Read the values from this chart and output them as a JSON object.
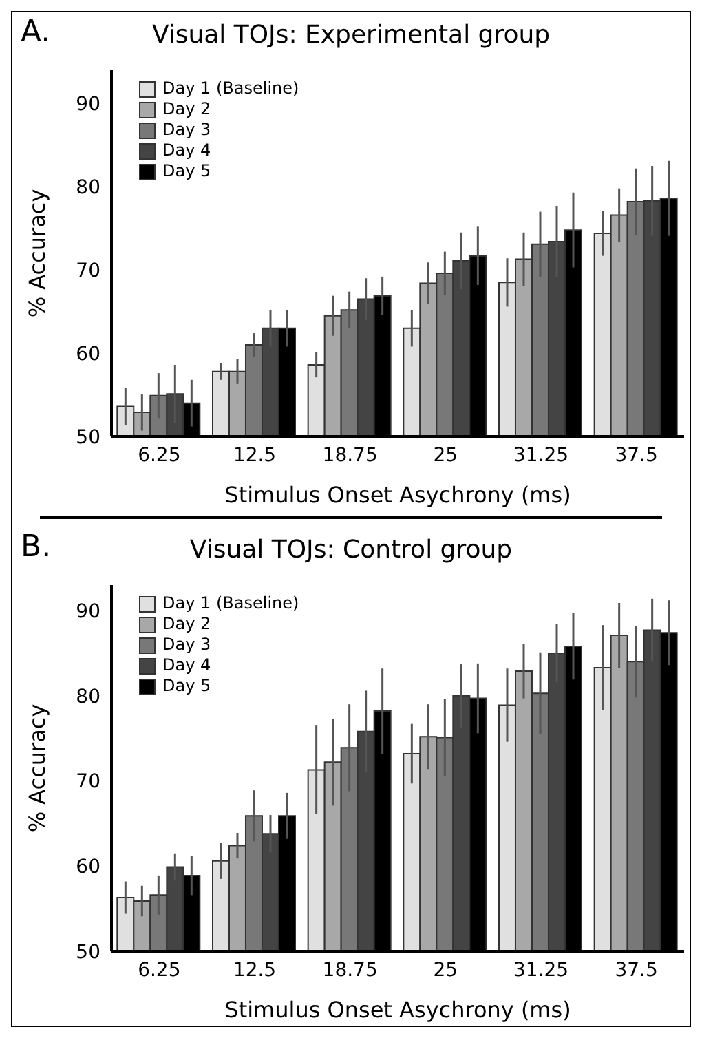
{
  "chart_data": [
    {
      "type": "bar",
      "title": "Visual TOJs: Experimental group",
      "annotations": [
        "A."
      ],
      "xlabel": "Stimulus Onset Asychrony (ms)",
      "ylabel": "% Accuracy",
      "categories": [
        "6.25",
        "12.5",
        "18.75",
        "25",
        "31.25",
        "37.5"
      ],
      "ylim": [
        50,
        94
      ],
      "yticks": [
        50,
        60,
        70,
        80,
        90
      ],
      "legend": "top left",
      "series": [
        {
          "name": "Day 1 (Baseline)",
          "color": "#e0e0e0",
          "values": [
            53.6,
            57.8,
            58.6,
            63.0,
            68.5,
            74.4
          ],
          "errors": [
            2.2,
            1,
            1.5,
            2.2,
            2.9,
            2.7
          ]
        },
        {
          "name": "Day 2",
          "color": "#a8a8a8",
          "values": [
            52.9,
            57.8,
            64.5,
            68.4,
            71.3,
            76.6
          ],
          "errors": [
            2.2,
            1.5,
            2.4,
            2.5,
            3.2,
            3.2
          ]
        },
        {
          "name": "Day 3",
          "color": "#787878",
          "values": [
            54.9,
            61.0,
            65.2,
            69.6,
            73.1,
            78.2
          ],
          "errors": [
            2.7,
            1.4,
            2.2,
            2.6,
            3.9,
            4
          ]
        },
        {
          "name": "Day 4",
          "color": "#444444",
          "values": [
            55.1,
            63.0,
            66.5,
            71.1,
            73.4,
            78.3
          ],
          "errors": [
            3.5,
            2.2,
            2.5,
            3.4,
            4.3,
            4.2
          ]
        },
        {
          "name": "Day 5",
          "color": "#000000",
          "values": [
            54.0,
            63.0,
            66.9,
            71.7,
            74.8,
            78.6
          ],
          "errors": [
            2.8,
            2.2,
            2.3,
            3.5,
            4.5,
            4.5
          ]
        }
      ]
    },
    {
      "type": "bar",
      "title": "Visual TOJs: Control group",
      "annotations": [
        "B."
      ],
      "xlabel": "Stimulus Onset Asychrony (ms)",
      "ylabel": "% Accuracy",
      "categories": [
        "6.25",
        "12.5",
        "18.75",
        "25",
        "31.25",
        "37.5"
      ],
      "ylim": [
        50,
        93
      ],
      "yticks": [
        50,
        60,
        70,
        80,
        90
      ],
      "legend": "top left",
      "series": [
        {
          "name": "Day 1 (Baseline)",
          "color": "#e0e0e0",
          "values": [
            56.3,
            60.6,
            71.3,
            73.2,
            78.9,
            83.3
          ],
          "errors": [
            1.9,
            2.1,
            5.2,
            3.5,
            4.3,
            5
          ]
        },
        {
          "name": "Day 2",
          "color": "#a8a8a8",
          "values": [
            55.9,
            62.4,
            72.2,
            75.2,
            82.9,
            87.1
          ],
          "errors": [
            1.8,
            1.5,
            5.1,
            3.8,
            3.2,
            3.8
          ]
        },
        {
          "name": "Day 3",
          "color": "#787878",
          "values": [
            56.6,
            65.9,
            73.9,
            75.1,
            80.3,
            84.0
          ],
          "errors": [
            2.3,
            3,
            5.1,
            4.5,
            4.8,
            4.2
          ]
        },
        {
          "name": "Day 4",
          "color": "#444444",
          "values": [
            59.9,
            63.8,
            75.8,
            80.0,
            85.0,
            87.7
          ],
          "errors": [
            1.6,
            2.2,
            4.8,
            3.7,
            3.4,
            3.7
          ]
        },
        {
          "name": "Day 5",
          "color": "#000000",
          "values": [
            58.9,
            65.9,
            78.2,
            79.7,
            85.8,
            87.4
          ],
          "errors": [
            2.3,
            2.7,
            5,
            4.1,
            3.9,
            3.8
          ]
        }
      ]
    }
  ]
}
